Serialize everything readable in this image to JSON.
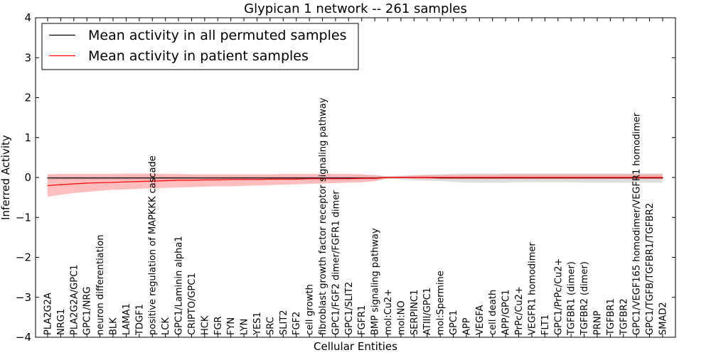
{
  "chart_data": {
    "type": "line",
    "title": "Glypican 1 network -- 261 samples",
    "xlabel": "Cellular Entities",
    "ylabel": "Inferred Activity",
    "ylim": [
      -4,
      4
    ],
    "yticks": [
      -4,
      -3,
      -2,
      -1,
      0,
      1,
      2,
      3,
      4
    ],
    "grid": false,
    "legend_position": "top-left",
    "categories": [
      "PLA2G2A",
      "NRG1",
      "PLA2G2A/GPC1",
      "GPC1/NRG",
      "neuron differentiation",
      "BLK",
      "LAMA1",
      "TDGF1",
      "positive regulation of MAPKKK cascade",
      "LCK",
      "GPC1/Laminin alpha1",
      "CRIPTO/GPC1",
      "HCK",
      "FGR",
      "FYN",
      "LYN",
      "YES1",
      "SRC",
      "SLIT2",
      "FGF2",
      "cell growth",
      "fibroblast growth factor receptor signaling pathway",
      "GPC1/FGF2 dimer/FGFR1 dimer",
      "GPC1/SLIT2",
      "FGFR1",
      "BMP signaling pathway",
      "mol:Cu2+",
      "mol:NO",
      "SERPINC1",
      "ATIII/GPC1",
      "mol:Spermine",
      "GPC1",
      "APP",
      "VEGFA",
      "cell death",
      "APP/GPC1",
      "PrPc/Cu2+",
      "VEGFR1 homodimer",
      "FLT1",
      "GPC1/PrPc/Cu2+",
      "TGFBR1 (dimer)",
      "TGFBR2 (dimer)",
      "PRNP",
      "TGFBR1",
      "TGFBR2",
      "GPC1/VEGF165 homodimer/VEGFR1 homodimer",
      "GPC1/TGFB/TGFBR1/TGFBR2",
      "SMAD2"
    ],
    "series": [
      {
        "name": "Mean activity in all permuted samples",
        "color": "#000000",
        "values": [
          -0.01,
          -0.01,
          -0.01,
          -0.01,
          -0.01,
          -0.01,
          -0.01,
          -0.01,
          -0.01,
          -0.01,
          -0.01,
          -0.01,
          -0.01,
          -0.01,
          -0.01,
          -0.01,
          -0.01,
          -0.01,
          -0.01,
          -0.01,
          -0.01,
          -0.01,
          -0.01,
          -0.01,
          -0.01,
          -0.01,
          0.0,
          0.0,
          0.0,
          0.0,
          -0.01,
          -0.01,
          -0.01,
          -0.01,
          -0.01,
          -0.01,
          -0.01,
          -0.01,
          -0.01,
          -0.01,
          -0.01,
          -0.01,
          -0.01,
          -0.01,
          -0.01,
          -0.01,
          -0.01,
          -0.01
        ],
        "band_low": [
          -0.07,
          -0.07,
          -0.07,
          -0.07,
          -0.07,
          -0.07,
          -0.07,
          -0.07,
          -0.07,
          -0.07,
          -0.07,
          -0.07,
          -0.07,
          -0.07,
          -0.07,
          -0.07,
          -0.07,
          -0.07,
          -0.07,
          -0.07,
          -0.07,
          -0.07,
          -0.07,
          -0.07,
          -0.07,
          -0.07,
          -0.03,
          -0.05,
          -0.07,
          -0.08,
          -0.09,
          -0.11,
          -0.13,
          -0.13,
          -0.13,
          -0.13,
          -0.12,
          -0.12,
          -0.12,
          -0.12,
          -0.12,
          -0.13,
          -0.13,
          -0.13,
          -0.13,
          -0.13,
          -0.13,
          -0.13
        ],
        "band_high": [
          0.05,
          0.05,
          0.05,
          0.05,
          0.05,
          0.05,
          0.05,
          0.05,
          0.05,
          0.05,
          0.05,
          0.05,
          0.05,
          0.05,
          0.05,
          0.05,
          0.05,
          0.05,
          0.05,
          0.05,
          0.05,
          0.05,
          0.05,
          0.05,
          0.06,
          0.07,
          0.03,
          0.05,
          0.06,
          0.07,
          0.08,
          0.09,
          0.1,
          0.1,
          0.1,
          0.1,
          0.1,
          0.1,
          0.1,
          0.1,
          0.1,
          0.1,
          0.1,
          0.1,
          0.1,
          0.1,
          0.1,
          0.1
        ]
      },
      {
        "name": "Mean activity in patient samples",
        "color": "#ff0000",
        "band_color": "#ff9a9a",
        "values": [
          -0.2,
          -0.18,
          -0.16,
          -0.14,
          -0.13,
          -0.12,
          -0.11,
          -0.1,
          -0.09,
          -0.08,
          -0.07,
          -0.07,
          -0.06,
          -0.06,
          -0.05,
          -0.05,
          -0.05,
          -0.04,
          -0.04,
          -0.04,
          -0.03,
          -0.03,
          -0.03,
          -0.03,
          -0.02,
          -0.02,
          0.0,
          0.0,
          0.0,
          0.0,
          0.0,
          0.0,
          0.0,
          0.0,
          0.0,
          0.0,
          0.0,
          0.0,
          0.0,
          0.0,
          0.0,
          0.0,
          0.0,
          0.0,
          0.0,
          0.0,
          0.0,
          0.0
        ],
        "band_low": [
          -0.48,
          -0.43,
          -0.39,
          -0.36,
          -0.33,
          -0.31,
          -0.3,
          -0.28,
          -0.27,
          -0.26,
          -0.25,
          -0.24,
          -0.23,
          -0.22,
          -0.22,
          -0.21,
          -0.2,
          -0.19,
          -0.18,
          -0.17,
          -0.16,
          -0.15,
          -0.14,
          -0.13,
          -0.12,
          -0.09,
          -0.02,
          -0.02,
          -0.03,
          -0.04,
          -0.04,
          -0.04,
          -0.04,
          -0.04,
          -0.04,
          -0.04,
          -0.04,
          -0.04,
          -0.04,
          -0.04,
          -0.04,
          -0.04,
          -0.04,
          -0.04,
          -0.04,
          -0.04,
          -0.04,
          -0.04
        ],
        "band_high": [
          0.08,
          0.09,
          0.09,
          0.09,
          0.09,
          0.09,
          0.1,
          0.1,
          0.1,
          0.09,
          0.09,
          0.08,
          0.08,
          0.08,
          0.08,
          0.08,
          0.08,
          0.08,
          0.09,
          0.09,
          0.09,
          0.09,
          0.09,
          0.09,
          0.08,
          0.05,
          0.02,
          0.03,
          0.05,
          0.06,
          0.06,
          0.07,
          0.07,
          0.07,
          0.07,
          0.08,
          0.08,
          0.08,
          0.08,
          0.08,
          0.08,
          0.08,
          0.08,
          0.08,
          0.08,
          0.08,
          0.08,
          0.08
        ]
      }
    ]
  }
}
